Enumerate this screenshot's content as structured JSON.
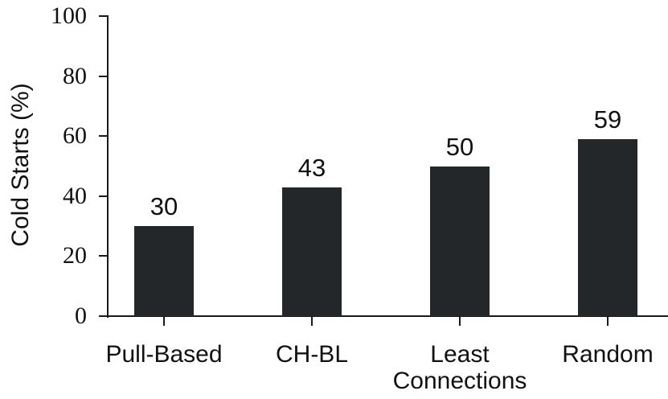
{
  "chart_data": {
    "type": "bar",
    "title": "",
    "xlabel": "",
    "ylabel": "Cold Starts (%)",
    "categories": [
      "Pull-Based",
      "CH-BL",
      "Least\nConnections",
      "Random"
    ],
    "values": [
      30,
      43,
      50,
      59
    ],
    "bar_labels": [
      "30",
      "43",
      "50",
      "59"
    ],
    "ylim": [
      0,
      100
    ],
    "yticks": [
      0,
      20,
      40,
      60,
      80,
      100
    ],
    "grid": false,
    "legend": null,
    "spines": [
      "left",
      "bottom"
    ],
    "colors": {
      "bar": "#24272a",
      "text": "#111111",
      "axis": "#1a1a1a",
      "background": "#ffffff"
    }
  }
}
